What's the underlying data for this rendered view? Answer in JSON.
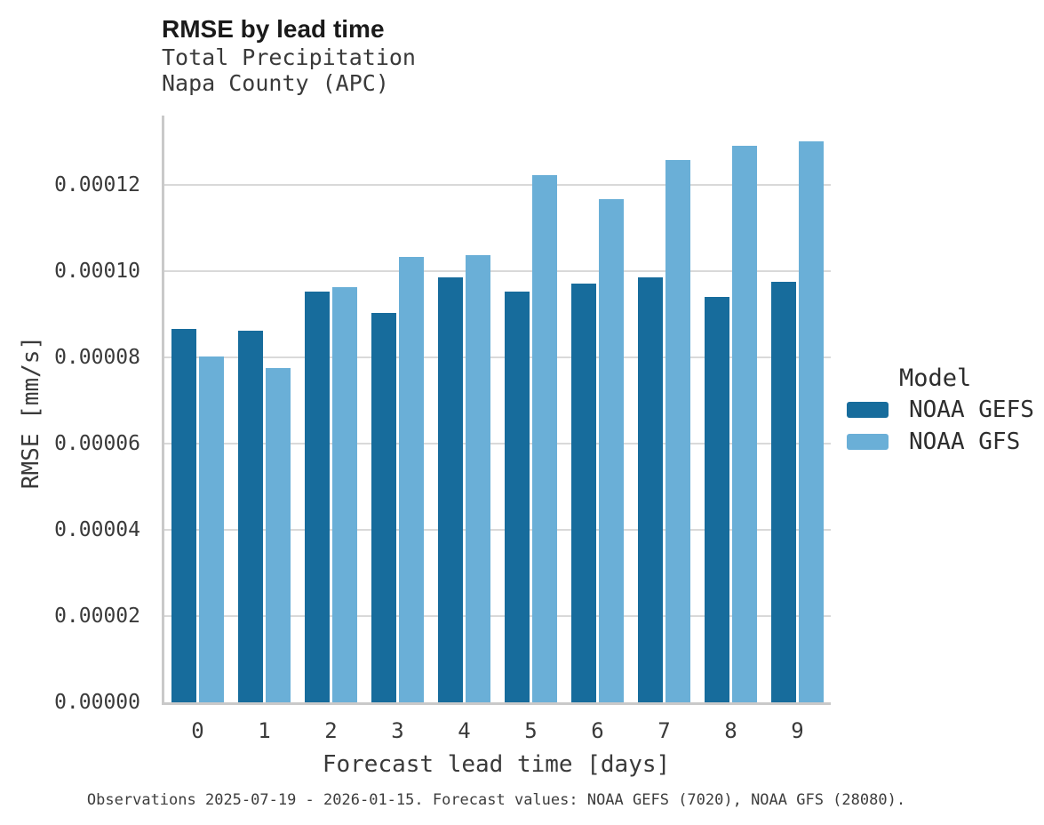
{
  "header": {
    "title": "RMSE by lead time",
    "subtitle_line1": "Total Precipitation",
    "subtitle_line2": "Napa County (APC)"
  },
  "chart_data": {
    "type": "bar",
    "title": "RMSE by lead time",
    "subtitle": [
      "Total Precipitation",
      "Napa County (APC)"
    ],
    "categories": [
      "0",
      "1",
      "2",
      "3",
      "4",
      "5",
      "6",
      "7",
      "8",
      "9"
    ],
    "series": [
      {
        "name": "NOAA GEFS",
        "color": "#176c9c",
        "values": [
          8.65e-05,
          8.62e-05,
          9.52e-05,
          9.02e-05,
          9.84e-05,
          9.52e-05,
          9.71e-05,
          9.84e-05,
          9.39e-05,
          9.75e-05
        ]
      },
      {
        "name": "NOAA GFS",
        "color": "#6aafd7",
        "values": [
          8.01e-05,
          7.75e-05,
          9.62e-05,
          0.0001032,
          0.0001036,
          0.0001221,
          0.0001166,
          0.0001257,
          0.0001289,
          0.0001301
        ]
      }
    ],
    "xlabel": "Forecast lead time [days]",
    "ylabel": "RMSE [mm/s]",
    "ylim": [
      0,
      0.000136
    ],
    "yticks": [
      0,
      2e-05,
      4e-05,
      6e-05,
      8e-05,
      0.0001,
      0.00012
    ],
    "ytick_labels": [
      "0.00000",
      "0.00002",
      "0.00004",
      "0.00006",
      "0.00008",
      "0.00010",
      "0.00012"
    ],
    "legend_title": "Model",
    "legend_position": "right",
    "grid": "horizontal",
    "gridline_color": "#d9d9d9",
    "axis_line_color": "#c9c9c9"
  },
  "footer": {
    "caption": "Observations 2025-07-19 - 2026-01-15. Forecast values: NOAA GEFS (7020), NOAA GFS (28080)."
  }
}
